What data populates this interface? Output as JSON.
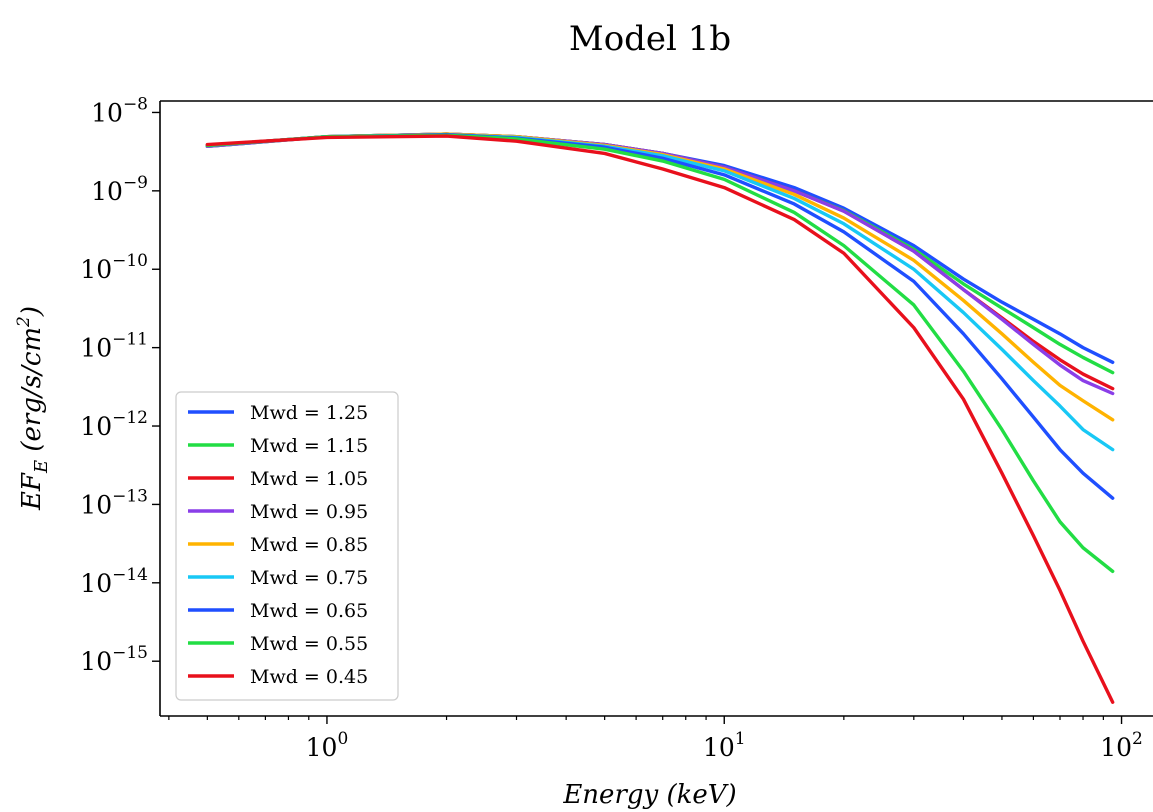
{
  "chart_data": {
    "type": "line",
    "title": "Model 1b",
    "xlabel": "Energy (keV)",
    "ylabel": "EF_E (erg/s/cm^2)",
    "x_scale": "log",
    "y_scale": "log",
    "xlim": [
      0.38,
      120
    ],
    "ylim": [
      2e-16,
      1.4e-08
    ],
    "x_ticks": [
      {
        "base": "10",
        "exp": "0",
        "value": 1
      },
      {
        "base": "10",
        "exp": "1",
        "value": 10
      },
      {
        "base": "10",
        "exp": "2",
        "value": 100
      }
    ],
    "y_ticks": [
      {
        "base": "10",
        "exp": "−8",
        "value": 1e-08
      },
      {
        "base": "10",
        "exp": "−9",
        "value": 1e-09
      },
      {
        "base": "10",
        "exp": "−10",
        "value": 1e-10
      },
      {
        "base": "10",
        "exp": "−11",
        "value": 1e-11
      },
      {
        "base": "10",
        "exp": "−12",
        "value": 1e-12
      },
      {
        "base": "10",
        "exp": "−13",
        "value": 1e-13
      },
      {
        "base": "10",
        "exp": "−14",
        "value": 1e-14
      },
      {
        "base": "10",
        "exp": "−15",
        "value": 1e-15
      }
    ],
    "grid": false,
    "legend_position": "lower-left",
    "x": [
      0.5,
      1,
      2,
      3,
      5,
      7,
      10,
      15,
      20,
      30,
      40,
      50,
      60,
      70,
      80,
      95
    ],
    "series": [
      {
        "name": "Mwd = 1.25",
        "color": "#1f4fff",
        "values": [
          3.7e-09,
          4.9e-09,
          5.3e-09,
          4.9e-09,
          3.9e-09,
          3e-09,
          2.1e-09,
          1.1e-09,
          6e-10,
          2e-10,
          7.5e-11,
          3.8e-11,
          2.3e-11,
          1.5e-11,
          1e-11,
          6.5e-12
        ]
      },
      {
        "name": "Mwd = 1.15",
        "color": "#22dd44",
        "values": [
          3.7e-09,
          4.9e-09,
          5.3e-09,
          4.9e-09,
          3.9e-09,
          3e-09,
          2e-09,
          1e-09,
          5.6e-10,
          1.8e-10,
          6.5e-11,
          3.2e-11,
          1.8e-11,
          1.1e-11,
          7.5e-12,
          4.8e-12
        ]
      },
      {
        "name": "Mwd = 1.05",
        "color": "#e8101c",
        "values": [
          3.8e-09,
          4.9e-09,
          5.3e-09,
          4.9e-09,
          3.9e-09,
          3e-09,
          2e-09,
          1e-09,
          5.5e-10,
          1.7e-10,
          5.5e-11,
          2.4e-11,
          1.2e-11,
          7e-12,
          4.6e-12,
          3e-12
        ]
      },
      {
        "name": "Mwd = 0.95",
        "color": "#8a3ee8",
        "values": [
          3.7e-09,
          4.9e-09,
          5.3e-09,
          4.9e-09,
          3.9e-09,
          3e-09,
          2e-09,
          1e-09,
          5.5e-10,
          1.7e-10,
          5.5e-11,
          2.3e-11,
          1.1e-11,
          6e-12,
          3.8e-12,
          2.6e-12
        ]
      },
      {
        "name": "Mwd = 0.85",
        "color": "#ffb300",
        "values": [
          3.8e-09,
          4.9e-09,
          5.3e-09,
          4.9e-09,
          3.8e-09,
          2.9e-09,
          1.9e-09,
          9e-10,
          4.5e-10,
          1.3e-10,
          4e-11,
          1.5e-11,
          6.5e-12,
          3.3e-12,
          2.1e-12,
          1.2e-12
        ]
      },
      {
        "name": "Mwd = 0.75",
        "color": "#18c8f5",
        "values": [
          3.8e-09,
          4.9e-09,
          5.2e-09,
          4.8e-09,
          3.7e-09,
          2.8e-09,
          1.8e-09,
          8e-10,
          3.8e-10,
          1e-10,
          2.8e-11,
          9.5e-12,
          3.8e-12,
          1.8e-12,
          9e-13,
          5e-13
        ]
      },
      {
        "name": "Mwd = 0.65",
        "color": "#1f4fff",
        "values": [
          3.8e-09,
          4.9e-09,
          5.2e-09,
          4.7e-09,
          3.6e-09,
          2.6e-09,
          1.6e-09,
          6.8e-10,
          3e-10,
          7e-11,
          1.5e-11,
          4e-12,
          1.3e-12,
          5e-13,
          2.5e-13,
          1.2e-13
        ]
      },
      {
        "name": "Mwd = 0.55",
        "color": "#22dd44",
        "values": [
          3.8e-09,
          4.9e-09,
          5.1e-09,
          4.6e-09,
          3.4e-09,
          2.4e-09,
          1.4e-09,
          5.3e-10,
          2e-10,
          3.5e-11,
          5e-12,
          9e-13,
          2e-13,
          6e-14,
          2.8e-14,
          1.4e-14
        ]
      },
      {
        "name": "Mwd = 0.45",
        "color": "#e8101c",
        "values": [
          3.9e-09,
          4.8e-09,
          5e-09,
          4.3e-09,
          3e-09,
          1.9e-09,
          1.1e-09,
          4.3e-10,
          1.6e-10,
          1.8e-11,
          2.2e-12,
          2.5e-13,
          4e-14,
          8e-15,
          1.8e-15,
          3e-16
        ]
      }
    ]
  }
}
